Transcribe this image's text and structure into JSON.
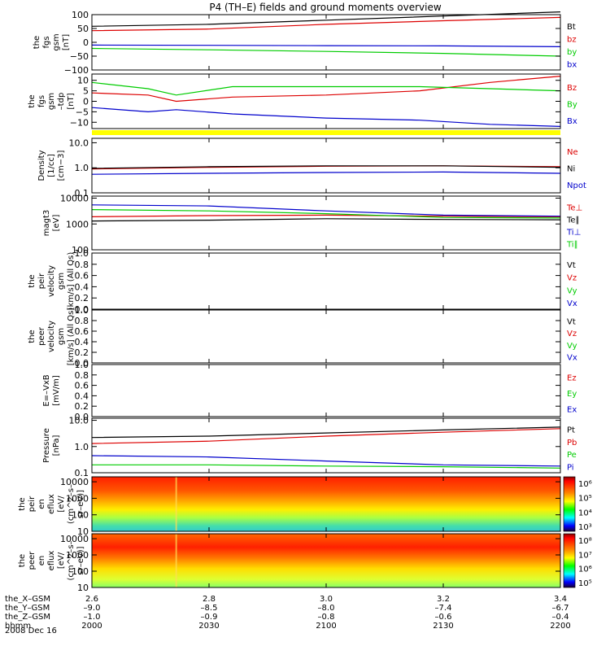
{
  "title": "P4 (TH–E) fields and ground moments overview",
  "date": "2008 Dec 16",
  "colorbars": {
    "eflux_i_ticks": [
      "10⁶",
      "10⁵",
      "10⁴",
      "10³"
    ],
    "eflux_e_ticks": [
      "10⁸",
      "10⁷",
      "10⁶",
      "10⁵"
    ]
  },
  "footer": {
    "rows": [
      {
        "label": "the_X–GSM",
        "values": [
          "2.6",
          "2.8",
          "3.0",
          "3.2",
          "3.4"
        ]
      },
      {
        "label": "the_Y–GSM",
        "values": [
          "–9.0",
          "–8.5",
          "–8.0",
          "–7.4",
          "–6.7"
        ]
      },
      {
        "label": "the_Z–GSM",
        "values": [
          "–1.0",
          "–0.9",
          "–0.8",
          "–0.6",
          "–0.4"
        ]
      },
      {
        "label": "hhmm",
        "values": [
          "2000",
          "2030",
          "2100",
          "2130",
          "2200"
        ]
      }
    ]
  },
  "chart_data": [
    {
      "type": "line",
      "ylabel": [
        "the",
        "fgs",
        "gsm",
        "[nT]"
      ],
      "ylim": [
        -100,
        100
      ],
      "yticks": [
        "100",
        "50",
        "0",
        "−50",
        "−100"
      ],
      "ytick_values": [
        100,
        50,
        0,
        -50,
        -100
      ],
      "x": [
        0,
        0.25,
        0.5,
        0.75,
        1.0
      ],
      "series": [
        {
          "name": "Bt",
          "color": "#000000",
          "values": [
            58,
            65,
            80,
            95,
            110
          ]
        },
        {
          "name": "bz",
          "color": "#dd0000",
          "values": [
            42,
            48,
            65,
            78,
            90
          ]
        },
        {
          "name": "by",
          "color": "#00cc00",
          "values": [
            -22,
            -27,
            -33,
            -40,
            -50
          ]
        },
        {
          "name": "bx",
          "color": "#0000cc",
          "values": [
            -10,
            -11,
            -12,
            -13,
            -16
          ]
        }
      ]
    },
    {
      "type": "line",
      "ylabel": [
        "the",
        "fgs",
        "gsm",
        "–tdp",
        "[nT]"
      ],
      "ylim": [
        -13,
        13
      ],
      "yticks": [
        "10",
        "5",
        "0",
        "−5",
        "−10"
      ],
      "ytick_values": [
        10,
        5,
        0,
        -5,
        -10
      ],
      "x": [
        0,
        0.12,
        0.18,
        0.3,
        0.5,
        0.7,
        0.85,
        1.0
      ],
      "series": [
        {
          "name": "Bz",
          "color": "#dd0000",
          "values": [
            4,
            3,
            0,
            2,
            3,
            5,
            9,
            12
          ]
        },
        {
          "name": "By",
          "color": "#00cc00",
          "values": [
            9,
            6,
            3,
            7,
            7,
            7,
            6,
            5
          ]
        },
        {
          "name": "Bx",
          "color": "#0000cc",
          "values": [
            -3,
            -5,
            -4,
            -6,
            -8,
            -9,
            -11,
            -12
          ]
        }
      ]
    },
    {
      "type": "line",
      "log": true,
      "ylabel": [
        "Density",
        "[1/cc]",
        "[cm−3]"
      ],
      "ylim": [
        0.1,
        15
      ],
      "yticks": [
        "10.0",
        "1.0",
        "0.1"
      ],
      "ytick_values": [
        10,
        1,
        0.1
      ],
      "x": [
        0,
        0.25,
        0.5,
        0.75,
        1.0
      ],
      "series": [
        {
          "name": "Ne",
          "color": "#dd0000",
          "values": [
            0.9,
            1.05,
            1.15,
            1.2,
            1.1
          ]
        },
        {
          "name": "Ni",
          "color": "#000000",
          "values": [
            0.95,
            1.1,
            1.2,
            1.2,
            1.05
          ]
        },
        {
          "name": "Npot",
          "color": "#0000cc",
          "values": [
            0.55,
            0.6,
            0.65,
            0.68,
            0.6
          ]
        }
      ]
    },
    {
      "type": "line",
      "log": true,
      "ylabel": [
        "magt3",
        "[eV]"
      ],
      "ylim": [
        100,
        12000
      ],
      "yticks": [
        "10000",
        "1000",
        "100"
      ],
      "ytick_values": [
        10000,
        1000,
        100
      ],
      "x": [
        0,
        0.25,
        0.5,
        0.75,
        1.0
      ],
      "series": [
        {
          "name": "Te⊥",
          "color": "#dd0000",
          "values": [
            1900,
            2100,
            2200,
            2000,
            1900
          ]
        },
        {
          "name": "Te∥",
          "color": "#000000",
          "values": [
            1300,
            1400,
            1600,
            1500,
            1450
          ]
        },
        {
          "name": "Ti⊥",
          "color": "#0000cc",
          "values": [
            5500,
            5000,
            3200,
            2200,
            2000
          ]
        },
        {
          "name": "Ti∥",
          "color": "#00cc00",
          "values": [
            3600,
            3200,
            2500,
            1800,
            1700
          ]
        }
      ]
    },
    {
      "type": "line",
      "ylabel": [
        "the",
        "peir",
        "velocity",
        "gsm",
        "[km/s] (All Qs)"
      ],
      "ylim": [
        0,
        1
      ],
      "yticks": [
        "1.0",
        "0.8",
        "0.6",
        "0.4",
        "0.2",
        "0.0"
      ],
      "ytick_values": [
        1.0,
        0.8,
        0.6,
        0.4,
        0.2,
        0.0
      ],
      "legend": [
        "Vt",
        "Vz",
        "Vy",
        "Vx"
      ],
      "legend_colors": [
        "#000000",
        "#dd0000",
        "#00cc00",
        "#0000cc"
      ]
    },
    {
      "type": "line",
      "ylabel": [
        "the",
        "peer",
        "velocity",
        "gsm",
        "[km/s] (All Qs)"
      ],
      "ylim": [
        0,
        1
      ],
      "yticks": [
        "1.0",
        "0.8",
        "0.6",
        "0.4",
        "0.2",
        "0.0"
      ],
      "ytick_values": [
        1.0,
        0.8,
        0.6,
        0.4,
        0.2,
        0.0
      ],
      "legend": [
        "Vt",
        "Vz",
        "Vy",
        "Vx"
      ],
      "legend_colors": [
        "#000000",
        "#dd0000",
        "#00cc00",
        "#0000cc"
      ]
    },
    {
      "type": "line",
      "ylabel": [
        "E=–VxB",
        "[mV/m]"
      ],
      "ylim": [
        0,
        1
      ],
      "yticks": [
        "1.0",
        "0.8",
        "0.6",
        "0.4",
        "0.2",
        "0.0"
      ],
      "ytick_values": [
        1.0,
        0.8,
        0.6,
        0.4,
        0.2,
        0.0
      ],
      "legend": [
        "Ez",
        "Ey",
        "Ex"
      ],
      "legend_colors": [
        "#dd0000",
        "#00cc00",
        "#0000cc"
      ]
    },
    {
      "type": "line",
      "log": true,
      "ylabel": [
        "Pressure",
        "[nPa]"
      ],
      "ylim": [
        0.1,
        12
      ],
      "yticks": [
        "10.0",
        "1.0",
        "0.1"
      ],
      "ytick_values": [
        10,
        1,
        0.1
      ],
      "x": [
        0,
        0.25,
        0.5,
        0.75,
        1.0
      ],
      "series": [
        {
          "name": "Pt",
          "color": "#000000",
          "values": [
            2.2,
            2.5,
            3.3,
            4.3,
            5.5
          ]
        },
        {
          "name": "Pb",
          "color": "#dd0000",
          "values": [
            1.3,
            1.6,
            2.5,
            3.5,
            4.8
          ]
        },
        {
          "name": "Pe",
          "color": "#00cc00",
          "values": [
            0.2,
            0.2,
            0.18,
            0.17,
            0.15
          ]
        },
        {
          "name": "Pi",
          "color": "#0000cc",
          "values": [
            0.45,
            0.4,
            0.28,
            0.2,
            0.18
          ]
        }
      ]
    },
    {
      "type": "heatmap",
      "ylabel": [
        "the",
        "peir",
        "en",
        "eflux",
        "[eV/",
        "(cm^2–s–",
        "sr–eV)]"
      ],
      "yticks": [
        "10000",
        "1000",
        "100",
        "10"
      ],
      "ytick_values": [
        10000,
        1000,
        100,
        10
      ]
    },
    {
      "type": "heatmap",
      "ylabel": [
        "the",
        "peer",
        "en",
        "eflux",
        "[eV/",
        "(cm^2–s–",
        "sr–eV)]"
      ],
      "yticks": [
        "10000",
        "1000",
        "100",
        "10"
      ],
      "ytick_values": [
        10000,
        1000,
        100,
        10
      ]
    }
  ]
}
